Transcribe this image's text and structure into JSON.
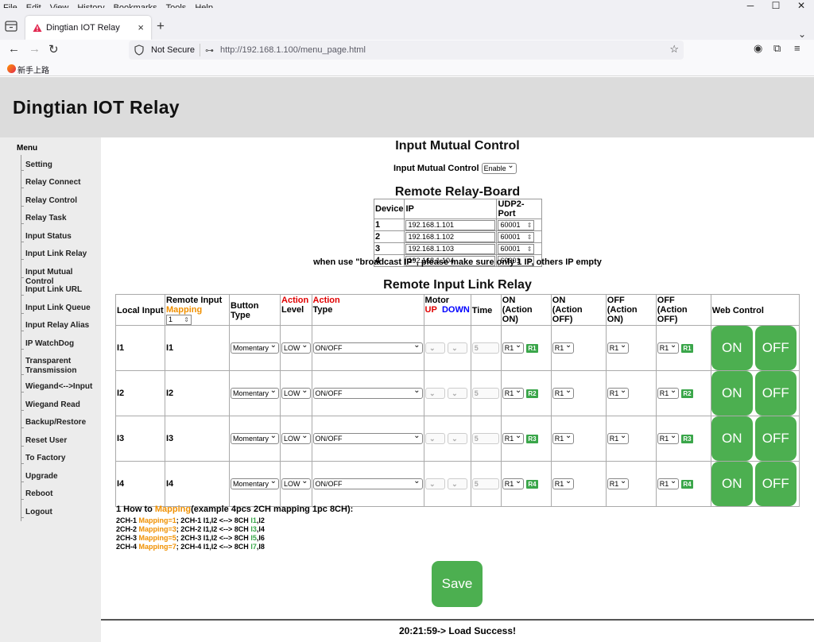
{
  "browser": {
    "menu": [
      "File",
      "Edit",
      "View",
      "History",
      "Bookmarks",
      "Tools",
      "Help"
    ],
    "tab_title": "Dingtian IOT Relay",
    "security": "Not Secure",
    "url": "http://192.168.1.100/menu_page.html",
    "bookmark": "新手上路"
  },
  "page": {
    "title": "Dingtian IOT Relay",
    "status": "20:21:59-> Load Success!"
  },
  "sidebar": {
    "title": "Menu",
    "items": [
      "Setting",
      "Relay Connect",
      "Relay Control",
      "Relay Task",
      "Input Status",
      "Input Link Relay",
      "Input Mutual Control",
      "Input Link URL",
      "Input Link Queue",
      "Input Relay Alias",
      "IP WatchDog",
      "Transparent Transmission",
      "Wiegand<-->Input",
      "Wiegand Read",
      "Backup/Restore",
      "Reset User",
      "To Factory",
      "Upgrade",
      "Reboot",
      "Logout"
    ]
  },
  "mutual": {
    "heading": "Input Mutual Control",
    "label": "Input Mutual Control",
    "value": "Enable"
  },
  "remote_board": {
    "heading": "Remote Relay-Board",
    "col_device": "Device",
    "col_ip": "IP",
    "col_port": "UDP2-Port",
    "rows": [
      {
        "device": "1",
        "ip": "192.168.1.101",
        "port": "60001"
      },
      {
        "device": "2",
        "ip": "192.168.1.102",
        "port": "60001"
      },
      {
        "device": "3",
        "ip": "192.168.1.103",
        "port": "60001"
      },
      {
        "device": "4",
        "ip": "192.168.1.104",
        "port": "60001"
      }
    ],
    "note": "when use \"broadcast IP\", please make sure only 1 IP, others IP empty"
  },
  "link": {
    "heading": "Remote Input Link Relay",
    "h_local": "Local Input",
    "h_remote": "Remote Input",
    "h_mapping": "Mapping",
    "mapping_value": "1",
    "h_button": "Button Type",
    "h_action": "Action",
    "h_level": "Level",
    "h_action2": "Action",
    "h_type": "Type",
    "h_motor": "Motor",
    "h_up": "UP",
    "h_down": "DOWN",
    "h_time": "Time",
    "h_on": "ON",
    "h_on_sub": "(Action ON)",
    "h_on2": "ON",
    "h_on2_sub": "(Action OFF)",
    "h_off": "OFF",
    "h_off_sub": "(Action ON)",
    "h_off2": "OFF",
    "h_off2_sub": "(Action OFF)",
    "h_web": "Web Control",
    "btn_on": "ON",
    "btn_off": "OFF",
    "rows": [
      {
        "local": "I1",
        "remote": "I1",
        "button": "Momentary",
        "level": "LOW",
        "type": "ON/OFF",
        "time": "5",
        "on": "R1",
        "on_badge": "R1",
        "on2": "R1",
        "off": "R1",
        "off2": "R1",
        "off2_badge": "R1"
      },
      {
        "local": "I2",
        "remote": "I2",
        "button": "Momentary",
        "level": "LOW",
        "type": "ON/OFF",
        "time": "5",
        "on": "R1",
        "on_badge": "R2",
        "on2": "R1",
        "off": "R1",
        "off2": "R1",
        "off2_badge": "R2"
      },
      {
        "local": "I3",
        "remote": "I3",
        "button": "Momentary",
        "level": "LOW",
        "type": "ON/OFF",
        "time": "5",
        "on": "R1",
        "on_badge": "R3",
        "on2": "R1",
        "off": "R1",
        "off2": "R1",
        "off2_badge": "R3"
      },
      {
        "local": "I4",
        "remote": "I4",
        "button": "Momentary",
        "level": "LOW",
        "type": "ON/OFF",
        "time": "5",
        "on": "R1",
        "on_badge": "R4",
        "on2": "R1",
        "off": "R1",
        "off2": "R1",
        "off2_badge": "R4"
      }
    ]
  },
  "howto": {
    "prefix": "1 How to ",
    "word": "Mapping",
    "suffix": "(example 4pcs 2CH mapping 1pc 8CH):",
    "lines": [
      {
        "a": "2CH-1 ",
        "m": "Mapping",
        "b": "=1",
        "c": "; 2CH-1 I1,I2 <--> 8CH ",
        "g": "I1",
        "d": ",I2"
      },
      {
        "a": "2CH-2 ",
        "m": "Mapping",
        "b": "=3",
        "c": "; 2CH-2 I1,I2 <--> 8CH ",
        "g": "I3",
        "d": ",I4"
      },
      {
        "a": "2CH-3 ",
        "m": "Mapping",
        "b": "=5",
        "c": "; 2CH-3 I1,I2 <--> 8CH ",
        "g": "I5",
        "d": ",I6"
      },
      {
        "a": "2CH-4 ",
        "m": "Mapping",
        "b": "=7",
        "c": "; 2CH-4 I1,I2 <--> 8CH ",
        "g": "I7",
        "d": ",I8"
      }
    ]
  },
  "save_label": "Save",
  "colors": {
    "green": "#4caf50",
    "red": "#e00000",
    "orange": "#f09000",
    "blue": "#0000ff"
  }
}
